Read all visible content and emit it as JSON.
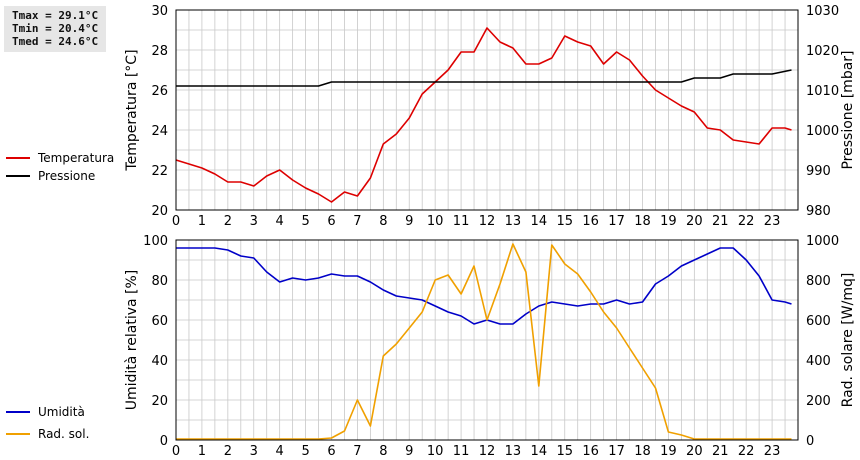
{
  "stats": {
    "tmax": "Tmax = 29.1°C",
    "tmin": "Tmin = 20.4°C",
    "tmed": "Tmed = 24.6°C"
  },
  "colors": {
    "temperature": "#dd0000",
    "pressure": "#000000",
    "humidity": "#0000c8",
    "radiation": "#f0a000",
    "grid": "#c8c8c8"
  },
  "chart_data": [
    {
      "type": "line",
      "ylabel": "Temperatura [°C]",
      "y2label": "Pressione [mbar]",
      "x_ticks": [
        "0",
        "1",
        "2",
        "3",
        "4",
        "5",
        "6",
        "7",
        "8",
        "9",
        "10",
        "11",
        "12",
        "13",
        "14",
        "15",
        "16",
        "17",
        "18",
        "19",
        "20",
        "21",
        "22",
        "23"
      ],
      "xlim": [
        0,
        24
      ],
      "ylim": [
        20,
        30
      ],
      "y_ticks": [
        "20",
        "22",
        "24",
        "26",
        "28",
        "30"
      ],
      "y2lim": [
        980,
        1030
      ],
      "y2_ticks": [
        "980",
        "990",
        "1000",
        "1010",
        "1020",
        "1030"
      ],
      "grid": true,
      "legend_position": "left",
      "series": [
        {
          "name": "Temperatura",
          "axis": "left",
          "points": [
            [
              0,
              22.5
            ],
            [
              0.5,
              22.3
            ],
            [
              1,
              22.1
            ],
            [
              1.5,
              21.8
            ],
            [
              2,
              21.4
            ],
            [
              2.5,
              21.4
            ],
            [
              3,
              21.2
            ],
            [
              3.5,
              21.7
            ],
            [
              4,
              22.0
            ],
            [
              4.5,
              21.5
            ],
            [
              5,
              21.1
            ],
            [
              5.5,
              20.8
            ],
            [
              6,
              20.4
            ],
            [
              6.5,
              20.9
            ],
            [
              7,
              20.7
            ],
            [
              7.5,
              21.6
            ],
            [
              8,
              23.3
            ],
            [
              8.5,
              23.8
            ],
            [
              9,
              24.6
            ],
            [
              9.5,
              25.8
            ],
            [
              10,
              26.4
            ],
            [
              10.5,
              27.0
            ],
            [
              11,
              27.9
            ],
            [
              11.5,
              27.9
            ],
            [
              12,
              29.1
            ],
            [
              12.5,
              28.4
            ],
            [
              13,
              28.1
            ],
            [
              13.5,
              27.3
            ],
            [
              14,
              27.3
            ],
            [
              14.5,
              27.6
            ],
            [
              15,
              28.7
            ],
            [
              15.5,
              28.4
            ],
            [
              16,
              28.2
            ],
            [
              16.5,
              27.3
            ],
            [
              17,
              27.9
            ],
            [
              17.5,
              27.5
            ],
            [
              18,
              26.7
            ],
            [
              18.5,
              26.0
            ],
            [
              19,
              25.6
            ],
            [
              19.5,
              25.2
            ],
            [
              20,
              24.9
            ],
            [
              20.5,
              24.1
            ],
            [
              21,
              24.0
            ],
            [
              21.5,
              23.5
            ],
            [
              22,
              23.4
            ],
            [
              22.5,
              23.3
            ],
            [
              23,
              24.1
            ],
            [
              23.5,
              24.1
            ],
            [
              23.75,
              24.0
            ]
          ]
        },
        {
          "name": "Pressione",
          "axis": "right",
          "points": [
            [
              0,
              1011
            ],
            [
              5.5,
              1011
            ],
            [
              6,
              1012
            ],
            [
              17.5,
              1012
            ],
            [
              19.5,
              1012
            ],
            [
              20,
              1013
            ],
            [
              21,
              1013
            ],
            [
              21.5,
              1014
            ],
            [
              23,
              1014
            ],
            [
              23.75,
              1015
            ]
          ]
        }
      ]
    },
    {
      "type": "line",
      "ylabel": "Umidità relativa [%]",
      "y2label": "Rad. solare [W/mq]",
      "x_ticks": [
        "0",
        "1",
        "2",
        "3",
        "4",
        "5",
        "6",
        "7",
        "8",
        "9",
        "10",
        "11",
        "12",
        "13",
        "14",
        "15",
        "16",
        "17",
        "18",
        "19",
        "20",
        "21",
        "22",
        "23"
      ],
      "xlim": [
        0,
        24
      ],
      "ylim": [
        0,
        100
      ],
      "y_ticks": [
        "0",
        "20",
        "40",
        "60",
        "80",
        "100"
      ],
      "y2lim": [
        0,
        1000
      ],
      "y2_ticks": [
        "0",
        "200",
        "400",
        "600",
        "800",
        "1000"
      ],
      "grid": true,
      "legend_position": "left",
      "series": [
        {
          "name": "Umidità",
          "axis": "left",
          "points": [
            [
              0,
              96
            ],
            [
              1.5,
              96
            ],
            [
              2,
              95
            ],
            [
              2.5,
              92
            ],
            [
              3,
              91
            ],
            [
              3.5,
              84
            ],
            [
              4,
              79
            ],
            [
              4.5,
              81
            ],
            [
              5,
              80
            ],
            [
              5.5,
              81
            ],
            [
              6,
              83
            ],
            [
              6.5,
              82
            ],
            [
              7,
              82
            ],
            [
              7.5,
              79
            ],
            [
              8,
              75
            ],
            [
              8.5,
              72
            ],
            [
              9,
              71
            ],
            [
              9.5,
              70
            ],
            [
              10,
              67
            ],
            [
              10.5,
              64
            ],
            [
              11,
              62
            ],
            [
              11.5,
              58
            ],
            [
              12,
              60
            ],
            [
              12.5,
              58
            ],
            [
              13,
              58
            ],
            [
              13.5,
              63
            ],
            [
              14,
              67
            ],
            [
              14.5,
              69
            ],
            [
              15,
              68
            ],
            [
              15.5,
              67
            ],
            [
              16,
              68
            ],
            [
              16.5,
              68
            ],
            [
              17,
              70
            ],
            [
              17.5,
              68
            ],
            [
              18,
              69
            ],
            [
              18.5,
              78
            ],
            [
              19,
              82
            ],
            [
              19.5,
              87
            ],
            [
              20,
              90
            ],
            [
              20.5,
              93
            ],
            [
              21,
              96
            ],
            [
              21.5,
              96
            ],
            [
              22,
              90
            ],
            [
              22.5,
              82
            ],
            [
              23,
              70
            ],
            [
              23.5,
              69
            ],
            [
              23.75,
              68
            ]
          ]
        },
        {
          "name": "Rad. sol.",
          "axis": "right",
          "points": [
            [
              0,
              5
            ],
            [
              5,
              5
            ],
            [
              5.5,
              5
            ],
            [
              6,
              10
            ],
            [
              6.5,
              45
            ],
            [
              7,
              200
            ],
            [
              7.5,
              70
            ],
            [
              8,
              420
            ],
            [
              8.5,
              480
            ],
            [
              9,
              560
            ],
            [
              9.5,
              640
            ],
            [
              10,
              800
            ],
            [
              10.5,
              825
            ],
            [
              11,
              730
            ],
            [
              11.5,
              870
            ],
            [
              12,
              600
            ],
            [
              12.5,
              780
            ],
            [
              13,
              980
            ],
            [
              13.5,
              840
            ],
            [
              14,
              270
            ],
            [
              14.5,
              975
            ],
            [
              15,
              880
            ],
            [
              15.5,
              830
            ],
            [
              16,
              740
            ],
            [
              16.5,
              640
            ],
            [
              17,
              560
            ],
            [
              17.5,
              460
            ],
            [
              18,
              360
            ],
            [
              18.5,
              260
            ],
            [
              19,
              40
            ],
            [
              19.5,
              25
            ],
            [
              20,
              5
            ],
            [
              23.75,
              5
            ]
          ]
        }
      ]
    }
  ]
}
